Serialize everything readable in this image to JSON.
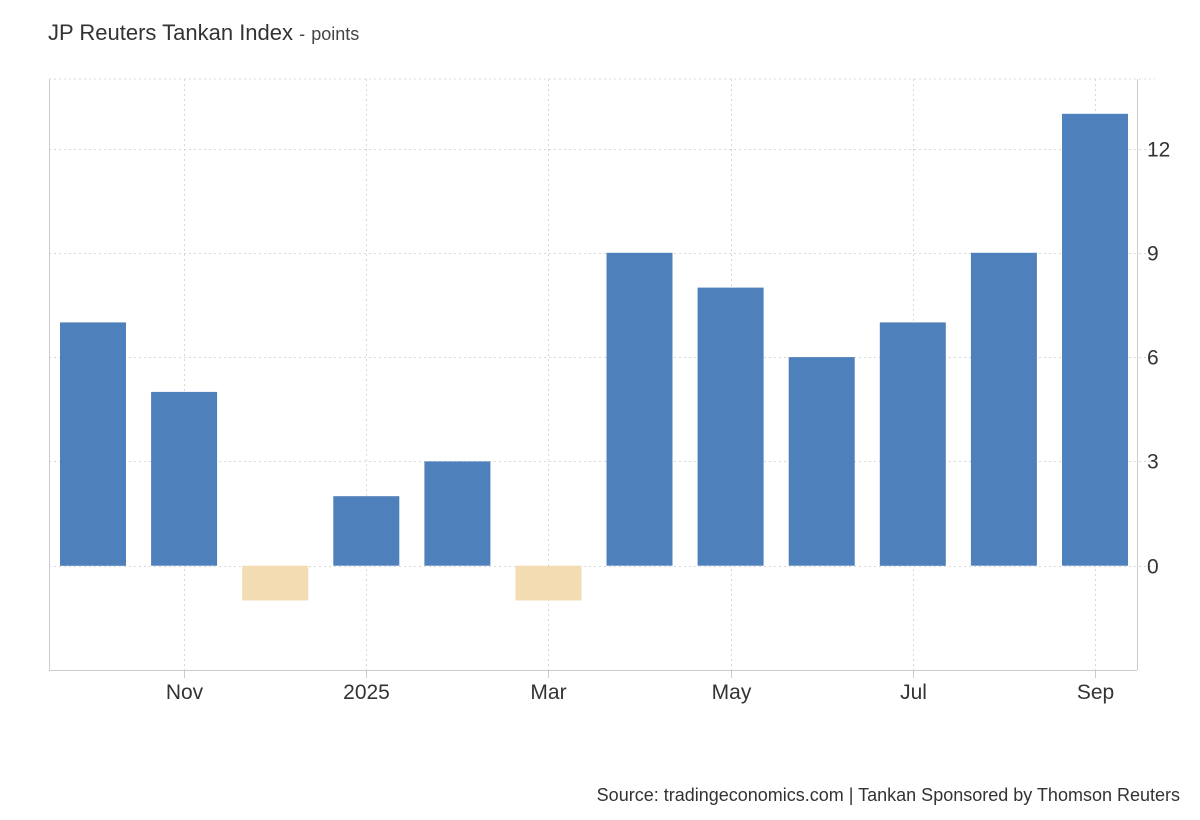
{
  "header": {
    "title": "JP Reuters Tankan Index",
    "separator": "-",
    "unit": "points"
  },
  "footer": {
    "source": "Source: tradingeconomics.com | Tankan Sponsored by Thomson Reuters"
  },
  "colors": {
    "positive": "#4e80bb",
    "negative": "#f3dcb2",
    "grid": "#d8d8d8",
    "axis": "#cccccc"
  },
  "chart_data": {
    "type": "bar",
    "title": "JP Reuters Tankan Index",
    "subtitle": "points",
    "categories": [
      "2024-10",
      "2024-11",
      "2024-12",
      "2025-01",
      "2025-02",
      "2025-03",
      "2025-04",
      "2025-05",
      "2025-06",
      "2025-07",
      "2025-08",
      "2025-09"
    ],
    "values": [
      7,
      5,
      -1,
      2,
      3,
      -1,
      9,
      8,
      6,
      7,
      9,
      13
    ],
    "x_ticks": [
      {
        "label": "Nov",
        "category": "2024-11"
      },
      {
        "label": "2025",
        "category": "2025-01"
      },
      {
        "label": "Mar",
        "category": "2025-03"
      },
      {
        "label": "May",
        "category": "2025-05"
      },
      {
        "label": "Jul",
        "category": "2025-07"
      },
      {
        "label": "Sep",
        "category": "2025-09"
      }
    ],
    "y_ticks": [
      0,
      3,
      6,
      9,
      12
    ],
    "ylim": [
      -3,
      14
    ],
    "yaxis_position": "right",
    "grid": true,
    "legend": false
  }
}
